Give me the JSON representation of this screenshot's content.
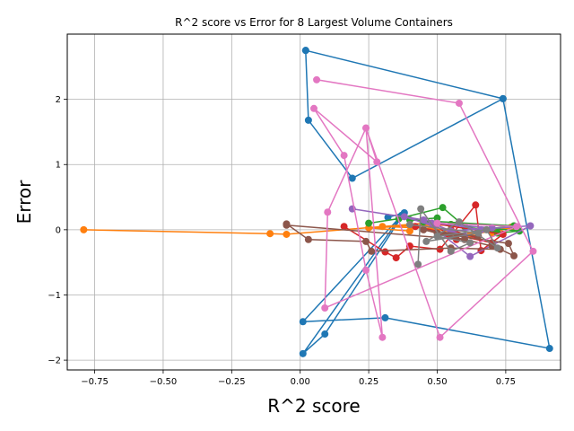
{
  "chart_data": {
    "type": "line",
    "title": "R^2 score vs Error for 8 Largest Volume Containers",
    "xlabel": "R^2 score",
    "ylabel": "Error",
    "xlim": [
      -0.85,
      0.95
    ],
    "ylim": [
      -2.15,
      3.0
    ],
    "xticks": [
      -0.75,
      -0.5,
      -0.25,
      0.0,
      0.25,
      0.5,
      0.75
    ],
    "xtick_labels": [
      "−0.75",
      "−0.50",
      "−0.25",
      "0.00",
      "0.25",
      "0.50",
      "0.75"
    ],
    "yticks": [
      -2,
      -1,
      0,
      1,
      2
    ],
    "ytick_labels": [
      "−2",
      "−1",
      "0",
      "1",
      "2"
    ],
    "grid": true,
    "legend": "none",
    "series": [
      {
        "color": "#1f77b4",
        "x": [
          0.02,
          0.74,
          0.19,
          0.03,
          0.02,
          0.74,
          0.91,
          0.31,
          0.01,
          0.37,
          0.01,
          0.09,
          0.38,
          0.32
        ],
        "y": [
          2.75,
          2.01,
          0.79,
          1.68,
          2.75,
          2.01,
          -1.82,
          -1.35,
          -1.41,
          0.22,
          -1.9,
          -1.6,
          0.26,
          0.19
        ]
      },
      {
        "color": "#ff7f0e",
        "x": [
          -0.79,
          -0.11,
          -0.05,
          0.45,
          0.6,
          0.7,
          0.77,
          0.62,
          0.48,
          0.3,
          0.55,
          0.25,
          0.4
        ],
        "y": [
          0.0,
          -0.06,
          -0.07,
          0.1,
          0.05,
          -0.05,
          0.04,
          -0.08,
          0.02,
          0.05,
          0.08,
          0.03,
          -0.02
        ]
      },
      {
        "color": "#2ca02c",
        "x": [
          0.25,
          0.36,
          0.52,
          0.6,
          0.72,
          0.8,
          0.45,
          0.55,
          0.7,
          0.78,
          0.4,
          0.5
        ],
        "y": [
          0.1,
          0.17,
          0.34,
          0.05,
          -0.05,
          -0.02,
          0.12,
          0.08,
          0.02,
          0.06,
          0.15,
          0.18
        ]
      },
      {
        "color": "#d62728",
        "x": [
          0.16,
          0.31,
          0.35,
          0.4,
          0.51,
          0.64,
          0.66,
          0.74,
          0.48,
          0.57,
          0.42,
          0.7,
          0.55
        ],
        "y": [
          0.05,
          -0.34,
          -0.43,
          -0.25,
          -0.3,
          0.38,
          -0.32,
          -0.07,
          0.1,
          -0.15,
          0.05,
          -0.2,
          0.0
        ]
      },
      {
        "color": "#9467bd",
        "x": [
          0.19,
          0.45,
          0.62,
          0.84,
          0.55,
          0.7,
          0.48,
          0.6,
          0.38,
          0.66
        ],
        "y": [
          0.32,
          0.15,
          -0.41,
          0.06,
          -0.02,
          0.03,
          0.1,
          -0.1,
          0.2,
          0.0
        ]
      },
      {
        "color": "#8c564b",
        "x": [
          -0.05,
          0.03,
          0.24,
          0.26,
          0.55,
          0.73,
          0.78,
          0.76,
          0.5,
          0.65,
          0.45,
          0.7,
          0.6,
          -0.05
        ],
        "y": [
          0.09,
          -0.15,
          -0.18,
          -0.33,
          -0.28,
          -0.3,
          -0.4,
          -0.21,
          -0.05,
          -0.1,
          0.0,
          -0.25,
          -0.15,
          0.07
        ]
      },
      {
        "color": "#e377c2",
        "x": [
          0.06,
          0.58,
          0.85,
          0.51,
          0.24,
          0.28,
          0.05,
          0.16,
          0.24,
          0.3,
          0.24,
          0.1,
          0.09,
          0.79,
          0.5
        ],
        "y": [
          2.3,
          1.94,
          -0.33,
          -1.65,
          1.56,
          1.04,
          1.86,
          1.14,
          -0.62,
          -1.65,
          1.56,
          0.27,
          -1.2,
          0.05,
          0.1
        ]
      },
      {
        "color": "#7f7f7f",
        "x": [
          0.43,
          0.44,
          0.55,
          0.62,
          0.5,
          0.68,
          0.72,
          0.58,
          0.46,
          0.65,
          0.4
        ],
        "y": [
          -0.53,
          0.32,
          -0.33,
          -0.2,
          -0.1,
          0.0,
          -0.28,
          0.12,
          -0.18,
          -0.05,
          0.08
        ]
      }
    ]
  }
}
